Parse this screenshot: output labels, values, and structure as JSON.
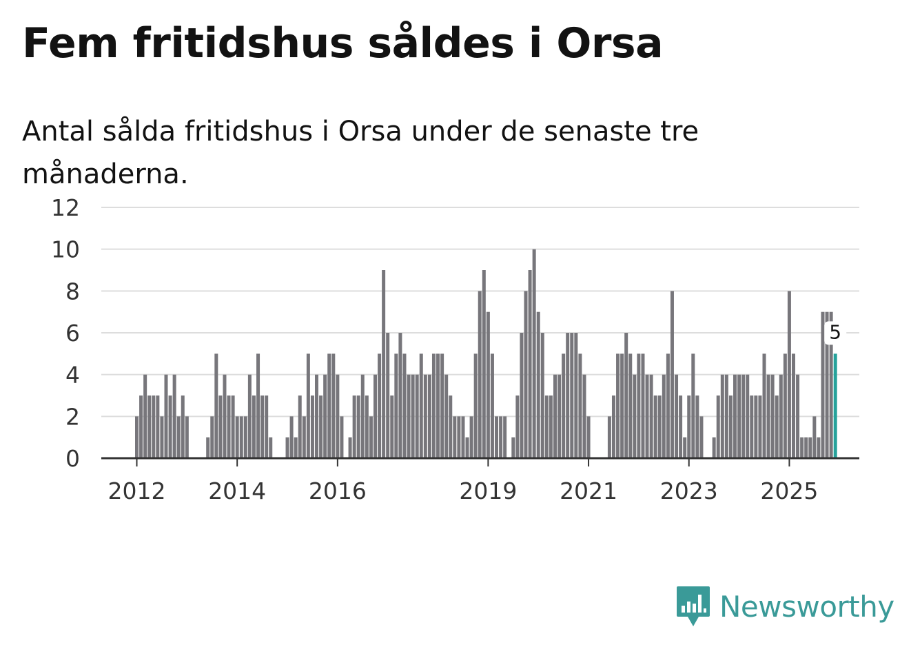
{
  "title": "Fem fritidshus såldes i Orsa",
  "subtitle": "Antal sålda fritidshus i Orsa under de senaste tre månaderna.",
  "brand": {
    "name": "Newsworthy",
    "color": "#3a9a98",
    "icon": "bar-chart-speech-bubble-icon"
  },
  "colors": {
    "bar": "#77767b",
    "highlight": "#26a29b",
    "grid": "#dddddd",
    "axis": "#333333"
  },
  "chart_data": {
    "type": "bar",
    "title": "Fem fritidshus såldes i Orsa",
    "subtitle": "Antal sålda fritidshus i Orsa under de senaste tre månaderna.",
    "xlabel": "",
    "ylabel": "",
    "ylim": [
      0,
      12
    ],
    "yticks": [
      0,
      2,
      4,
      6,
      8,
      10,
      12
    ],
    "grid": true,
    "x_start": "2012-01",
    "xtick_labels": [
      "2012",
      "2014",
      "2016",
      "2019",
      "2021",
      "2023",
      "2025"
    ],
    "values": [
      2,
      3,
      4,
      3,
      3,
      3,
      2,
      4,
      3,
      4,
      2,
      3,
      2,
      0,
      0,
      0,
      0,
      1,
      2,
      5,
      3,
      4,
      3,
      3,
      2,
      2,
      2,
      4,
      3,
      5,
      3,
      3,
      1,
      0,
      0,
      0,
      1,
      2,
      1,
      3,
      2,
      5,
      3,
      4,
      3,
      4,
      5,
      5,
      4,
      2,
      0,
      1,
      3,
      3,
      4,
      3,
      2,
      4,
      5,
      9,
      6,
      3,
      5,
      6,
      5,
      4,
      4,
      4,
      5,
      4,
      4,
      5,
      5,
      5,
      4,
      3,
      2,
      2,
      2,
      1,
      2,
      5,
      8,
      9,
      7,
      5,
      2,
      2,
      2,
      0,
      1,
      3,
      6,
      8,
      9,
      10,
      7,
      6,
      3,
      3,
      4,
      4,
      5,
      6,
      6,
      6,
      5,
      4,
      2,
      0,
      0,
      0,
      0,
      2,
      3,
      5,
      5,
      6,
      5,
      4,
      5,
      5,
      4,
      4,
      3,
      3,
      4,
      5,
      8,
      4,
      3,
      1,
      3,
      5,
      3,
      2,
      0,
      0,
      1,
      3,
      4,
      4,
      3,
      4,
      4,
      4,
      4,
      3,
      3,
      3,
      5,
      4,
      4,
      3,
      4,
      5,
      8,
      5,
      4,
      1,
      1,
      1,
      2,
      1,
      7,
      7,
      7,
      5
    ],
    "highlight": {
      "index": 167,
      "label": "5"
    }
  }
}
